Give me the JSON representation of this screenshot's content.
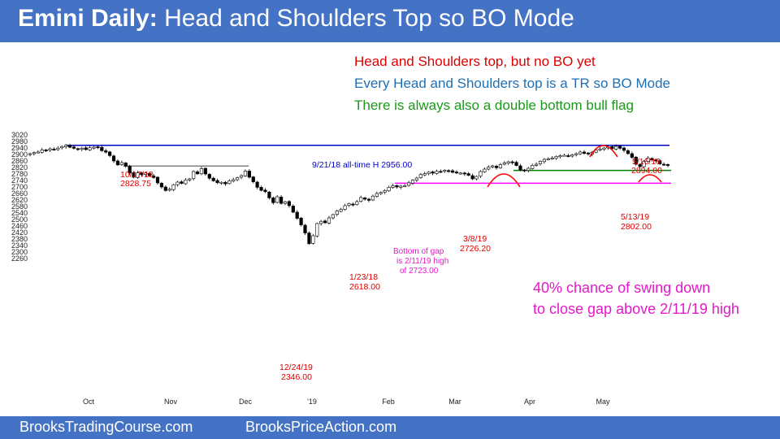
{
  "header": {
    "title_bold": "Emini Daily:",
    "title_rest": "Head and Shoulders Top so BO Mode"
  },
  "notes": [
    {
      "text": "Head and Shoulders top, but no BO yet",
      "color": "#e00000"
    },
    {
      "text": "Every Head and Shoulders top is a TR so BO Mode",
      "color": "#1f6fb4"
    },
    {
      "text": "There is always also a double bottom bull flag",
      "color": "#1a9a1a"
    }
  ],
  "callout": {
    "line1": "40% chance of swing down",
    "line2": "to close gap above 2/11/19 high",
    "color": "#e619c8"
  },
  "footer": {
    "left": "BrooksTradingCourse.com",
    "right": "BrooksPriceAction.com"
  },
  "labels": {
    "l1017_date": "10/17/18",
    "l1017_price": "2828.75",
    "l0921": "9/21/18 all-time H 2956.00",
    "l0123_date": "1/23/18",
    "l0123_price": "2618.00",
    "l1224_date": "12/24/19",
    "l1224_price": "2346.00",
    "gap1": "Bottom of gap",
    "gap2": "is 2/11/19 high",
    "gap3": "of 2723.00",
    "l0308_date": "3/8/19",
    "l0308_price": "2726.20",
    "l0516_date": "5/16/19",
    "l0516_price": "2894.00",
    "l0513_date": "5/13/19",
    "l0513_price": "2802.00"
  },
  "chart_data": {
    "type": "candlestick",
    "y_ticks": [
      3020,
      2980,
      2940,
      2900,
      2860,
      2820,
      2780,
      2740,
      2700,
      2660,
      2620,
      2580,
      2540,
      2500,
      2460,
      2420,
      2380,
      2340,
      2300,
      2260
    ],
    "x_ticks": [
      "Oct",
      "Nov",
      "Dec",
      "'19",
      "Feb",
      "Mar",
      "Apr",
      "May"
    ],
    "ylim": [
      2240,
      3030
    ],
    "colors": {
      "up": "#ffffff",
      "down": "#000000",
      "top_line": "#0000c8",
      "resistance": "#808080",
      "support": "#008000",
      "gap": "#ff00ff",
      "hs_arc": "#ff0000"
    },
    "levels": [
      {
        "name": "all-time high",
        "value": 2956.0
      },
      {
        "name": "10/17/18 high",
        "value": 2828.75
      },
      {
        "name": "5/13/19 low",
        "value": 2802.0
      },
      {
        "name": "2/11/19 high gap",
        "value": 2723.0
      }
    ],
    "close": [
      2905,
      2911,
      2915,
      2928,
      2925,
      2935,
      2930,
      2939,
      2949,
      2956,
      2944,
      2938,
      2932,
      2939,
      2930,
      2941,
      2945,
      2946,
      2923,
      2914,
      2893,
      2860,
      2836,
      2850,
      2828,
      2786,
      2760,
      2787,
      2775,
      2786,
      2768,
      2758,
      2725,
      2700,
      2678,
      2686,
      2714,
      2730,
      2722,
      2743,
      2750,
      2795,
      2781,
      2813,
      2780,
      2754,
      2738,
      2726,
      2729,
      2719,
      2738,
      2745,
      2758,
      2770,
      2798,
      2760,
      2732,
      2698,
      2679,
      2671,
      2633,
      2603,
      2640,
      2599,
      2609,
      2585,
      2545,
      2507,
      2467,
      2417,
      2351,
      2400,
      2475,
      2489,
      2480,
      2510,
      2530,
      2552,
      2562,
      2585,
      2597,
      2592,
      2610,
      2635,
      2625,
      2618,
      2644,
      2660,
      2666,
      2678,
      2698,
      2707,
      2700,
      2705,
      2708,
      2726,
      2742,
      2755,
      2776,
      2782,
      2791,
      2785,
      2796,
      2794,
      2803,
      2800,
      2790,
      2787,
      2786,
      2780,
      2772,
      2750,
      2765,
      2795,
      2810,
      2822,
      2830,
      2818,
      2838,
      2848,
      2855,
      2850,
      2832,
      2805,
      2800,
      2815,
      2833,
      2840,
      2858,
      2870,
      2873,
      2878,
      2888,
      2892,
      2895,
      2890,
      2898,
      2905,
      2915,
      2907,
      2903,
      2914,
      2926,
      2934,
      2940,
      2946,
      2935,
      2950,
      2938,
      2925,
      2905,
      2882,
      2840,
      2825,
      2856,
      2878,
      2867,
      2860,
      2842,
      2838,
      2832
    ]
  }
}
